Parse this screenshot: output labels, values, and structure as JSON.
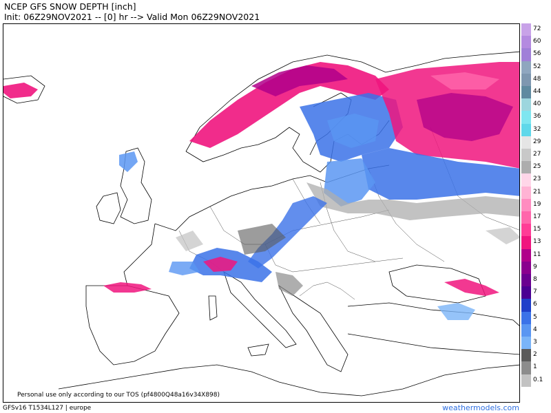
{
  "header": {
    "title": "NCEP GFS SNOW DEPTH [inch]",
    "subtitle": "Init: 06Z29NOV2021 -- [0] hr --> Valid Mon 06Z29NOV2021"
  },
  "map": {
    "region": "europe",
    "tos_note": "Personal use only according to our TOS (pf4800Q48a16v34X898)"
  },
  "footer": {
    "model_info": "GFSv16 T1534L127 | europe",
    "brand": "weathermodels.com"
  },
  "legend": {
    "labels": [
      "72",
      "60",
      "56",
      "52",
      "48",
      "44",
      "40",
      "36",
      "32",
      "29",
      "27",
      "25",
      "23",
      "21",
      "19",
      "17",
      "15",
      "13",
      "11",
      "9",
      "8",
      "7",
      "6",
      "5",
      "4",
      "3",
      "2",
      "1",
      "0.1"
    ],
    "colors": [
      "#c8a2e8",
      "#b48ae0",
      "#a07fd8",
      "#8fa6bf",
      "#7e97b0",
      "#5f8aa0",
      "#9dd6de",
      "#7fe6f0",
      "#5fd8ea",
      "#e5e5e5",
      "#c8c8c8",
      "#adadad",
      "#ffd6e8",
      "#ffb3d4",
      "#ff8cc0",
      "#ff66ab",
      "#ff3d96",
      "#f0157e",
      "#b0008a",
      "#8a008e",
      "#6a0090",
      "#4a0092",
      "#1f3fc9",
      "#3b72e8",
      "#5a96f2",
      "#7ab4f8",
      "#5a5a5a",
      "#8c8c8c",
      "#c2c2c2"
    ]
  }
}
